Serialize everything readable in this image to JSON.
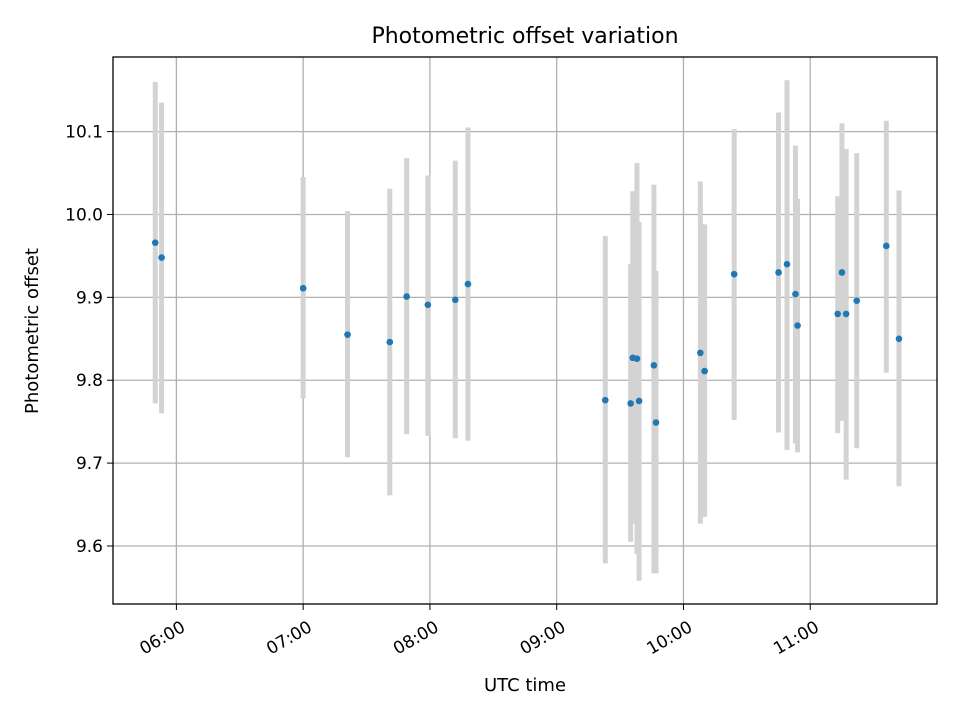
{
  "chart_data": {
    "type": "scatter",
    "title": "Photometric offset variation",
    "xlabel": "UTC time",
    "ylabel": "Photometric offset",
    "x_ticks": [
      "06:00",
      "07:00",
      "08:00",
      "09:00",
      "10:00",
      "11:00"
    ],
    "y_ticks": [
      "9.6",
      "9.7",
      "9.8",
      "9.9",
      "10.0",
      "10.1"
    ],
    "xlim": [
      "05:30",
      "12:00"
    ],
    "ylim": [
      9.53,
      10.19
    ],
    "grid": true,
    "colors": {
      "points": "#1f77b4",
      "errorbars": "#d3d3d3"
    },
    "points": [
      {
        "x": "05:50",
        "y": 9.966,
        "yerr_low": 9.772,
        "yerr_high": 10.16
      },
      {
        "x": "05:53",
        "y": 9.948,
        "yerr_low": 9.76,
        "yerr_high": 10.135
      },
      {
        "x": "07:00",
        "y": 9.911,
        "yerr_low": 9.778,
        "yerr_high": 10.045
      },
      {
        "x": "07:21",
        "y": 9.855,
        "yerr_low": 9.707,
        "yerr_high": 10.004
      },
      {
        "x": "07:41",
        "y": 9.846,
        "yerr_low": 9.661,
        "yerr_high": 10.031
      },
      {
        "x": "07:49",
        "y": 9.901,
        "yerr_low": 9.735,
        "yerr_high": 10.068
      },
      {
        "x": "07:59",
        "y": 9.891,
        "yerr_low": 9.733,
        "yerr_high": 10.047
      },
      {
        "x": "08:12",
        "y": 9.897,
        "yerr_low": 9.73,
        "yerr_high": 10.065
      },
      {
        "x": "08:18",
        "y": 9.916,
        "yerr_low": 9.727,
        "yerr_high": 10.105
      },
      {
        "x": "09:23",
        "y": 9.776,
        "yerr_low": 9.579,
        "yerr_high": 9.974
      },
      {
        "x": "09:35",
        "y": 9.772,
        "yerr_low": 9.605,
        "yerr_high": 9.94
      },
      {
        "x": "09:36",
        "y": 9.827,
        "yerr_low": 9.627,
        "yerr_high": 10.028
      },
      {
        "x": "09:38",
        "y": 9.826,
        "yerr_low": 9.59,
        "yerr_high": 10.062
      },
      {
        "x": "09:39",
        "y": 9.775,
        "yerr_low": 9.558,
        "yerr_high": 9.991
      },
      {
        "x": "09:46",
        "y": 9.818,
        "yerr_low": 9.567,
        "yerr_high": 10.036
      },
      {
        "x": "09:47",
        "y": 9.749,
        "yerr_low": 9.567,
        "yerr_high": 9.932
      },
      {
        "x": "10:08",
        "y": 9.833,
        "yerr_low": 9.627,
        "yerr_high": 10.04
      },
      {
        "x": "10:10",
        "y": 9.811,
        "yerr_low": 9.635,
        "yerr_high": 9.988
      },
      {
        "x": "10:24",
        "y": 9.928,
        "yerr_low": 9.752,
        "yerr_high": 10.103
      },
      {
        "x": "10:45",
        "y": 9.93,
        "yerr_low": 9.737,
        "yerr_high": 10.123
      },
      {
        "x": "10:49",
        "y": 9.94,
        "yerr_low": 9.716,
        "yerr_high": 10.162
      },
      {
        "x": "10:53",
        "y": 9.904,
        "yerr_low": 9.724,
        "yerr_high": 10.083
      },
      {
        "x": "10:54",
        "y": 9.866,
        "yerr_low": 9.713,
        "yerr_high": 10.019
      },
      {
        "x": "11:13",
        "y": 9.88,
        "yerr_low": 9.736,
        "yerr_high": 10.022
      },
      {
        "x": "11:15",
        "y": 9.93,
        "yerr_low": 9.751,
        "yerr_high": 10.11
      },
      {
        "x": "11:17",
        "y": 9.88,
        "yerr_low": 9.68,
        "yerr_high": 10.079
      },
      {
        "x": "11:22",
        "y": 9.896,
        "yerr_low": 9.718,
        "yerr_high": 10.074
      },
      {
        "x": "11:36",
        "y": 9.962,
        "yerr_low": 9.809,
        "yerr_high": 10.113
      },
      {
        "x": "11:42",
        "y": 9.85,
        "yerr_low": 9.672,
        "yerr_high": 10.029
      }
    ]
  }
}
